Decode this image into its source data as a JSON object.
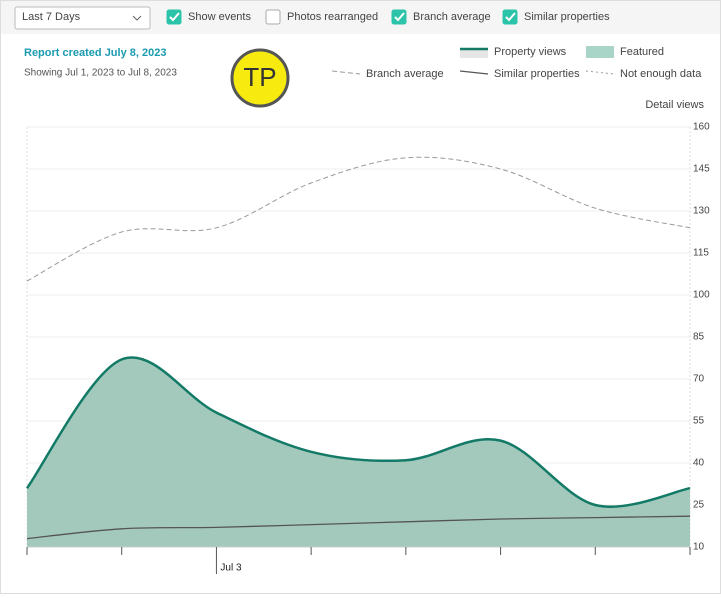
{
  "controls": {
    "range": "Last 7 Days",
    "checkboxes": [
      {
        "label": "Show events",
        "checked": true
      },
      {
        "label": "Photos rearranged",
        "checked": false
      },
      {
        "label": "Branch average",
        "checked": true
      },
      {
        "label": "Similar properties",
        "checked": true
      }
    ],
    "report_title": "Report created July 8, 2023",
    "report_subtitle": "Showing Jul 1, 2023 to Jul 8, 2023",
    "logo": "TP",
    "detail_link": "Detail views"
  },
  "chart_data": {
    "type": "line",
    "categories": [
      null,
      null,
      "Jul 3",
      null,
      null,
      null,
      null,
      null
    ],
    "series": [
      {
        "name": "Property views",
        "color": "#127a66",
        "style": "solid-thick",
        "fill": "#a3c9bc",
        "values": [
          31,
          77,
          58,
          44,
          41,
          48,
          25,
          31
        ]
      },
      {
        "name": "Branch average",
        "color": "#999999",
        "style": "dashed",
        "values": [
          105,
          122.5,
          124,
          140,
          149,
          145,
          131,
          124
        ]
      },
      {
        "name": "Similar properties",
        "color": "#555555",
        "style": "solid",
        "values": [
          13,
          16.5,
          17,
          18,
          19,
          20,
          20.5,
          21
        ]
      }
    ],
    "legend_extra": [
      {
        "name": "Featured",
        "color": "#a8d5c8",
        "style": "box"
      },
      {
        "name": "Not enough data",
        "color": "#999999",
        "style": "dotted"
      }
    ],
    "ylim": [
      10,
      160
    ],
    "yticks": [
      10,
      25,
      40,
      55,
      70,
      85,
      100,
      115,
      130,
      145,
      160
    ],
    "grid": true
  }
}
